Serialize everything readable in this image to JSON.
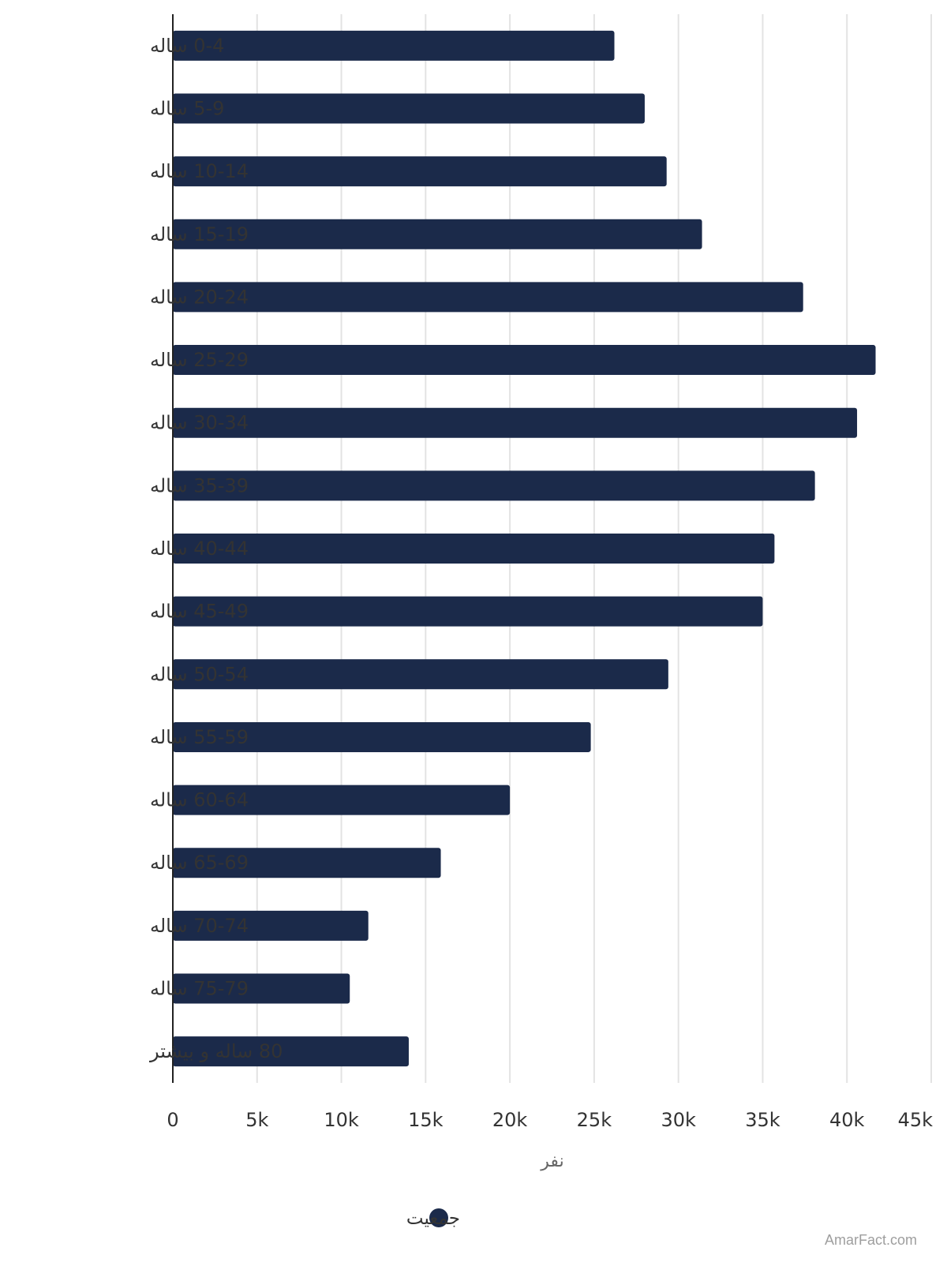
{
  "chart_data": {
    "type": "bar",
    "orientation": "horizontal",
    "categories": [
      "0-4 ساله",
      "5-9 ساله",
      "10-14 ساله",
      "15-19 ساله",
      "20-24 ساله",
      "25-29 ساله",
      "30-34 ساله",
      "35-39 ساله",
      "40-44 ساله",
      "45-49 ساله",
      "50-54 ساله",
      "55-59 ساله",
      "60-64 ساله",
      "65-69 ساله",
      "70-74 ساله",
      "75-79 ساله",
      "80 ساله و بیشتر"
    ],
    "series": [
      {
        "name": "جمعیت",
        "values": [
          26200,
          28000,
          29300,
          31400,
          37400,
          41700,
          40600,
          38100,
          35700,
          35000,
          29400,
          24800,
          20000,
          15900,
          11600,
          10500,
          14000
        ]
      }
    ],
    "xlabel": "نفر",
    "ylabel": "",
    "xlim": [
      0,
      45000
    ],
    "xticks": [
      "0",
      "5k",
      "10k",
      "15k",
      "20k",
      "25k",
      "30k",
      "35k",
      "40k",
      "45k"
    ],
    "grid": true,
    "legend_position": "bottom-center",
    "colors": {
      "bar": "#1b2a4a",
      "grid": "#e3e3e3",
      "axis": "#222222",
      "label": "#333333"
    }
  },
  "watermark": "AmarFact.com"
}
